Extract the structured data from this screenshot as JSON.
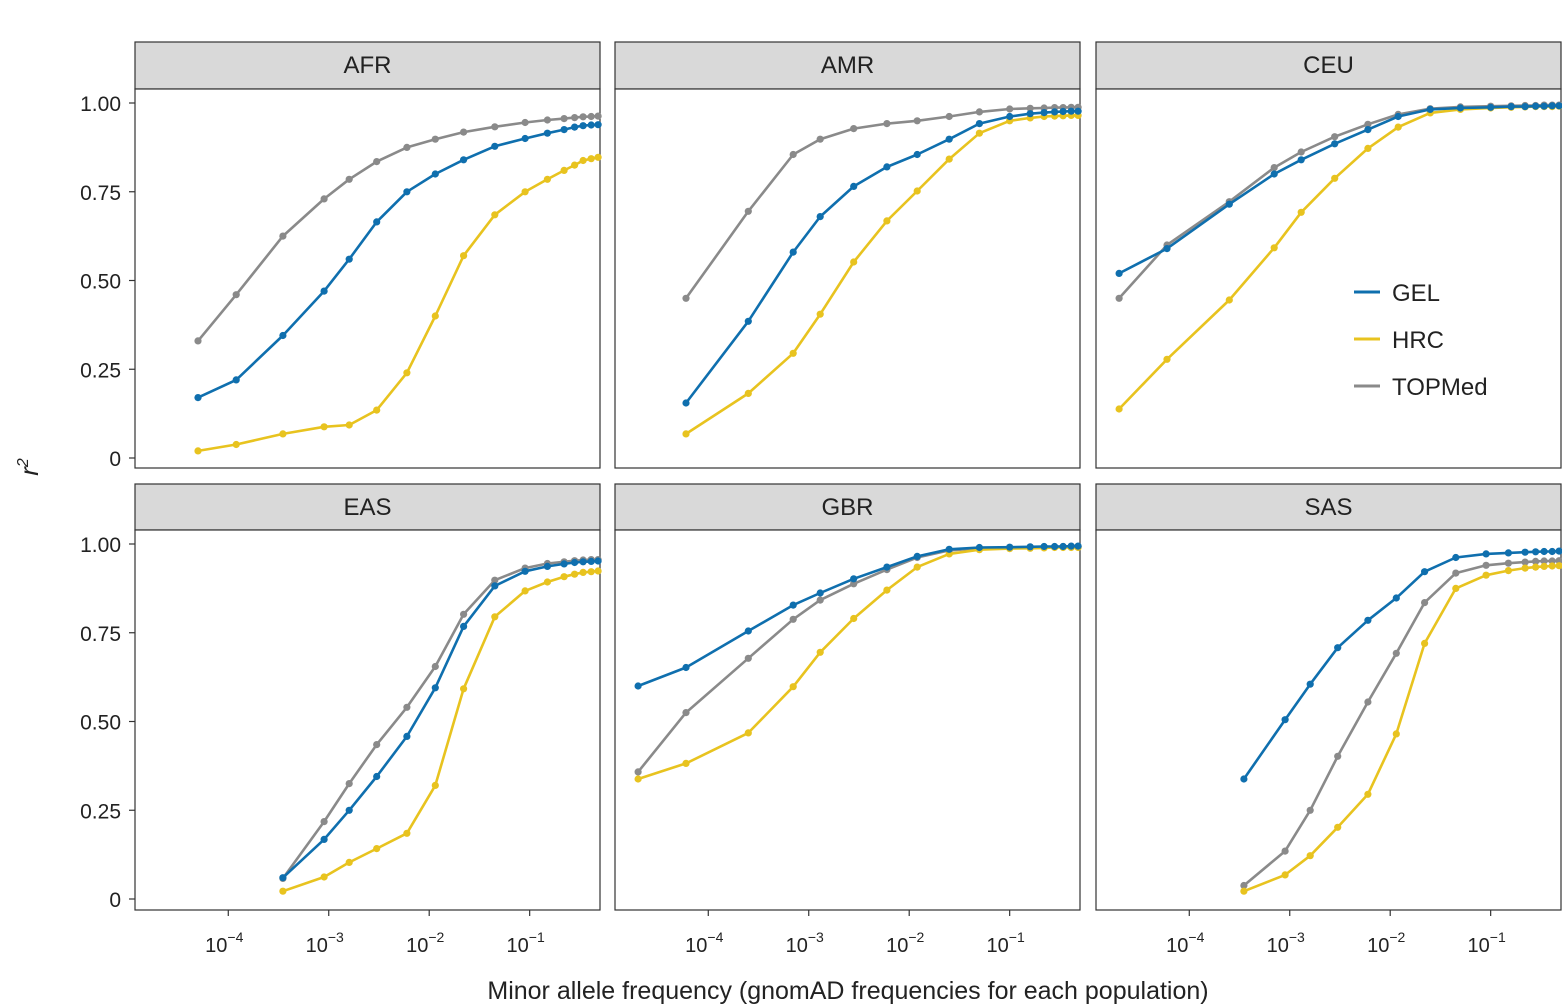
{
  "figure": {
    "xlabel": "Minor allele frequency (gnomAD frequencies for each population)",
    "ylabel_base": "r",
    "ylabel_sup": "2"
  },
  "legend": {
    "items": [
      {
        "label": "GEL",
        "color": "#0f6fae"
      },
      {
        "label": "HRC",
        "color": "#e8c31f"
      },
      {
        "label": "TOPMed",
        "color": "#8a8a8a"
      }
    ]
  },
  "chart_data": {
    "type": "line",
    "x_scale": "log10",
    "xlim_log10": [
      -4.7,
      -0.2
    ],
    "ylim": [
      0,
      1.0
    ],
    "y_ticks": [
      0,
      0.25,
      0.5,
      0.75,
      1.0
    ],
    "y_tick_labels": [
      "0",
      "0.25",
      "0.50",
      "0.75",
      "1.00"
    ],
    "x_ticks_log10": [
      -4,
      -3,
      -2,
      -1
    ],
    "x_tick_labels": [
      {
        "base": "10",
        "exp": "−4"
      },
      {
        "base": "10",
        "exp": "−3"
      },
      {
        "base": "10",
        "exp": "−2"
      },
      {
        "base": "10",
        "exp": "−1"
      }
    ],
    "grid": false,
    "legend_position": "right (in CEU panel)",
    "series_colors": {
      "GEL": "#0f6fae",
      "HRC": "#e8c31f",
      "TOPMed": "#8a8a8a"
    },
    "panels": [
      {
        "title": "AFR",
        "series": [
          {
            "name": "GEL",
            "x": [
              5e-05,
              0.00012,
              0.00035,
              0.0009,
              0.0016,
              0.003,
              0.006,
              0.0115,
              0.022,
              0.045,
              0.09,
              0.15,
              0.22,
              0.28,
              0.34,
              0.41,
              0.48
            ],
            "y": [
              0.17,
              0.22,
              0.345,
              0.47,
              0.56,
              0.665,
              0.75,
              0.8,
              0.84,
              0.878,
              0.9,
              0.915,
              0.925,
              0.932,
              0.936,
              0.938,
              0.939
            ]
          },
          {
            "name": "HRC",
            "x": [
              5e-05,
              0.00012,
              0.00035,
              0.0009,
              0.0016,
              0.003,
              0.006,
              0.0115,
              0.022,
              0.045,
              0.09,
              0.15,
              0.22,
              0.28,
              0.34,
              0.41,
              0.48
            ],
            "y": [
              0.02,
              0.038,
              0.068,
              0.088,
              0.093,
              0.135,
              0.24,
              0.4,
              0.57,
              0.685,
              0.75,
              0.785,
              0.81,
              0.825,
              0.838,
              0.843,
              0.847
            ]
          },
          {
            "name": "TOPMed",
            "x": [
              5e-05,
              0.00012,
              0.00035,
              0.0009,
              0.0016,
              0.003,
              0.006,
              0.0115,
              0.022,
              0.045,
              0.09,
              0.15,
              0.22,
              0.28,
              0.34,
              0.41,
              0.48
            ],
            "y": [
              0.33,
              0.46,
              0.625,
              0.73,
              0.785,
              0.835,
              0.875,
              0.898,
              0.918,
              0.933,
              0.945,
              0.952,
              0.956,
              0.959,
              0.961,
              0.962,
              0.963
            ]
          }
        ]
      },
      {
        "title": "AMR",
        "series": [
          {
            "name": "GEL",
            "x": [
              6e-05,
              0.00025,
              0.0007,
              0.0013,
              0.0028,
              0.006,
              0.012,
              0.025,
              0.05,
              0.1,
              0.16,
              0.22,
              0.28,
              0.34,
              0.41,
              0.48
            ],
            "y": [
              0.155,
              0.385,
              0.58,
              0.68,
              0.765,
              0.82,
              0.855,
              0.898,
              0.942,
              0.962,
              0.97,
              0.973,
              0.975,
              0.976,
              0.977,
              0.977
            ]
          },
          {
            "name": "HRC",
            "x": [
              6e-05,
              0.00025,
              0.0007,
              0.0013,
              0.0028,
              0.006,
              0.012,
              0.025,
              0.05,
              0.1,
              0.16,
              0.22,
              0.28,
              0.34,
              0.41,
              0.48
            ],
            "y": [
              0.068,
              0.182,
              0.295,
              0.405,
              0.552,
              0.668,
              0.752,
              0.842,
              0.915,
              0.95,
              0.958,
              0.962,
              0.963,
              0.964,
              0.965,
              0.965
            ]
          },
          {
            "name": "TOPMed",
            "x": [
              6e-05,
              0.00025,
              0.0007,
              0.0013,
              0.0028,
              0.006,
              0.012,
              0.025,
              0.05,
              0.1,
              0.16,
              0.22,
              0.28,
              0.34,
              0.41,
              0.48
            ],
            "y": [
              0.45,
              0.695,
              0.855,
              0.898,
              0.928,
              0.942,
              0.95,
              0.962,
              0.975,
              0.983,
              0.985,
              0.986,
              0.987,
              0.987,
              0.988,
              0.988
            ]
          }
        ]
      },
      {
        "title": "CEU",
        "series": [
          {
            "name": "GEL",
            "x": [
              2e-05,
              6e-05,
              0.00025,
              0.0007,
              0.0013,
              0.0028,
              0.006,
              0.012,
              0.025,
              0.05,
              0.1,
              0.16,
              0.22,
              0.28,
              0.34,
              0.41,
              0.48
            ],
            "y": [
              0.52,
              0.59,
              0.715,
              0.8,
              0.84,
              0.885,
              0.925,
              0.962,
              0.982,
              0.986,
              0.988,
              0.99,
              0.99,
              0.991,
              0.991,
              0.992,
              0.992
            ]
          },
          {
            "name": "HRC",
            "x": [
              2e-05,
              6e-05,
              0.00025,
              0.0007,
              0.0013,
              0.0028,
              0.006,
              0.012,
              0.025,
              0.05,
              0.1,
              0.16,
              0.22,
              0.28,
              0.34,
              0.41,
              0.48
            ],
            "y": [
              0.138,
              0.278,
              0.445,
              0.592,
              0.692,
              0.788,
              0.872,
              0.932,
              0.972,
              0.982,
              0.986,
              0.988,
              0.989,
              0.99,
              0.99,
              0.99,
              0.991
            ]
          },
          {
            "name": "TOPMed",
            "x": [
              2e-05,
              6e-05,
              0.00025,
              0.0007,
              0.0013,
              0.0028,
              0.006,
              0.012,
              0.025,
              0.05,
              0.1,
              0.16,
              0.22,
              0.28,
              0.34,
              0.41,
              0.48
            ],
            "y": [
              0.45,
              0.6,
              0.722,
              0.818,
              0.862,
              0.905,
              0.94,
              0.968,
              0.984,
              0.989,
              0.991,
              0.992,
              0.993,
              0.993,
              0.994,
              0.994,
              0.994
            ]
          }
        ]
      },
      {
        "title": "EAS",
        "series": [
          {
            "name": "GEL",
            "x": [
              0.00035,
              0.0009,
              0.0016,
              0.003,
              0.006,
              0.0115,
              0.022,
              0.045,
              0.09,
              0.15,
              0.22,
              0.28,
              0.34,
              0.41,
              0.48
            ],
            "y": [
              0.06,
              0.168,
              0.25,
              0.345,
              0.458,
              0.595,
              0.768,
              0.882,
              0.923,
              0.937,
              0.944,
              0.948,
              0.95,
              0.951,
              0.952
            ]
          },
          {
            "name": "HRC",
            "x": [
              0.00035,
              0.0009,
              0.0016,
              0.003,
              0.006,
              0.0115,
              0.022,
              0.045,
              0.09,
              0.15,
              0.22,
              0.28,
              0.34,
              0.41,
              0.48
            ],
            "y": [
              0.022,
              0.062,
              0.103,
              0.142,
              0.185,
              0.32,
              0.592,
              0.795,
              0.868,
              0.893,
              0.908,
              0.915,
              0.92,
              0.922,
              0.924
            ]
          },
          {
            "name": "TOPMed",
            "x": [
              0.00035,
              0.0009,
              0.0016,
              0.003,
              0.006,
              0.0115,
              0.022,
              0.045,
              0.09,
              0.15,
              0.22,
              0.28,
              0.34,
              0.41,
              0.48
            ],
            "y": [
              0.058,
              0.218,
              0.325,
              0.435,
              0.54,
              0.655,
              0.802,
              0.898,
              0.932,
              0.945,
              0.95,
              0.953,
              0.955,
              0.956,
              0.956
            ]
          }
        ]
      },
      {
        "title": "GBR",
        "series": [
          {
            "name": "GEL",
            "x": [
              2e-05,
              6e-05,
              0.00025,
              0.0007,
              0.0013,
              0.0028,
              0.006,
              0.012,
              0.025,
              0.05,
              0.1,
              0.16,
              0.22,
              0.28,
              0.34,
              0.41,
              0.48
            ],
            "y": [
              0.6,
              0.652,
              0.755,
              0.828,
              0.862,
              0.902,
              0.935,
              0.965,
              0.985,
              0.99,
              0.991,
              0.992,
              0.993,
              0.993,
              0.993,
              0.994,
              0.994
            ]
          },
          {
            "name": "HRC",
            "x": [
              2e-05,
              6e-05,
              0.00025,
              0.0007,
              0.0013,
              0.0028,
              0.006,
              0.012,
              0.025,
              0.05,
              0.1,
              0.16,
              0.22,
              0.28,
              0.34,
              0.41,
              0.48
            ],
            "y": [
              0.338,
              0.382,
              0.468,
              0.598,
              0.695,
              0.79,
              0.87,
              0.935,
              0.972,
              0.984,
              0.987,
              0.988,
              0.989,
              0.99,
              0.99,
              0.99,
              0.99
            ]
          },
          {
            "name": "TOPMed",
            "x": [
              2e-05,
              6e-05,
              0.00025,
              0.0007,
              0.0013,
              0.0028,
              0.006,
              0.012,
              0.025,
              0.05,
              0.1,
              0.16,
              0.22,
              0.28,
              0.34,
              0.41,
              0.48
            ],
            "y": [
              0.358,
              0.525,
              0.678,
              0.788,
              0.842,
              0.888,
              0.928,
              0.962,
              0.982,
              0.988,
              0.99,
              0.991,
              0.992,
              0.992,
              0.993,
              0.993,
              0.993
            ]
          }
        ]
      },
      {
        "title": "SAS",
        "series": [
          {
            "name": "GEL",
            "x": [
              0.00035,
              0.0009,
              0.0016,
              0.003,
              0.006,
              0.0115,
              0.022,
              0.045,
              0.09,
              0.15,
              0.22,
              0.28,
              0.34,
              0.41,
              0.48
            ],
            "y": [
              0.338,
              0.505,
              0.605,
              0.708,
              0.785,
              0.848,
              0.922,
              0.962,
              0.972,
              0.975,
              0.977,
              0.978,
              0.979,
              0.979,
              0.98
            ]
          },
          {
            "name": "HRC",
            "x": [
              0.00035,
              0.0009,
              0.0016,
              0.003,
              0.006,
              0.0115,
              0.022,
              0.045,
              0.09,
              0.15,
              0.22,
              0.28,
              0.34,
              0.41,
              0.48
            ],
            "y": [
              0.022,
              0.068,
              0.122,
              0.202,
              0.295,
              0.465,
              0.72,
              0.875,
              0.912,
              0.925,
              0.932,
              0.935,
              0.937,
              0.938,
              0.939
            ]
          },
          {
            "name": "TOPMed",
            "x": [
              0.00035,
              0.0009,
              0.0016,
              0.003,
              0.006,
              0.0115,
              0.022,
              0.045,
              0.09,
              0.15,
              0.22,
              0.28,
              0.34,
              0.41,
              0.48
            ],
            "y": [
              0.038,
              0.135,
              0.25,
              0.402,
              0.555,
              0.692,
              0.835,
              0.918,
              0.94,
              0.946,
              0.949,
              0.951,
              0.952,
              0.952,
              0.953
            ]
          }
        ]
      }
    ]
  }
}
